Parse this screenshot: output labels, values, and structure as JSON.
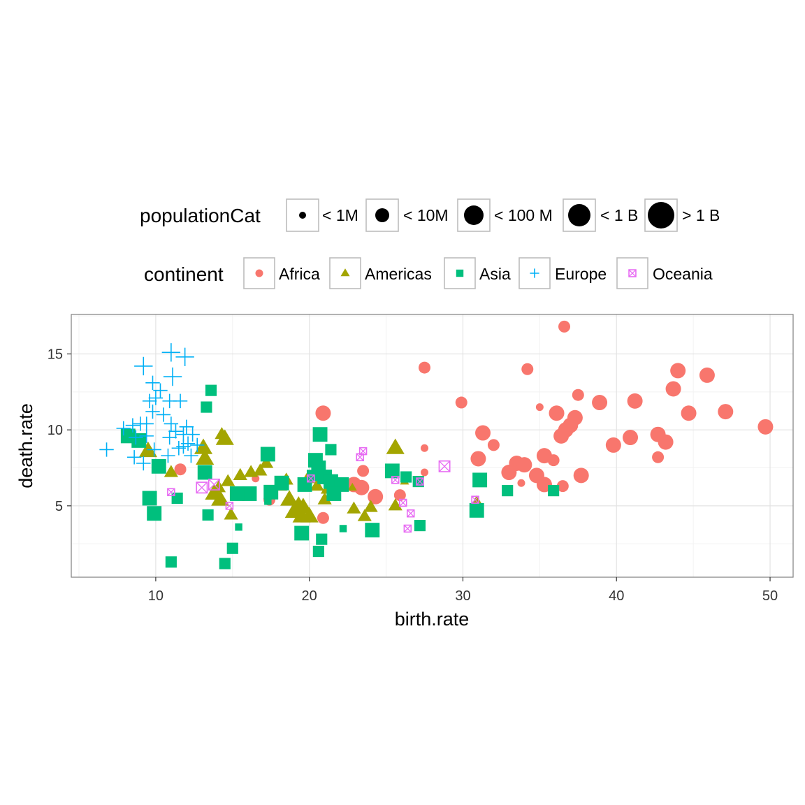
{
  "chart_data": {
    "type": "scatter",
    "xlabel": "birth.rate",
    "ylabel": "death.rate",
    "xlim": [
      4.5,
      51.5
    ],
    "ylim": [
      0.3,
      17.6
    ],
    "x_ticks": [
      10,
      20,
      30,
      40,
      50
    ],
    "y_ticks": [
      5,
      10,
      15
    ],
    "grid": true,
    "legend_placement": "top",
    "size_legend": {
      "title": "populationCat",
      "categories": [
        "< 1M",
        "< 10M",
        "< 100 M",
        "< 1 B",
        "> 1 B"
      ]
    },
    "shape_legend": {
      "title": "continent",
      "categories": [
        "Africa",
        "Americas",
        "Asia",
        "Europe",
        "Oceania"
      ]
    },
    "colors": {
      "Africa": "#F8766D",
      "Americas": "#A3A500",
      "Asia": "#00BF7D",
      "Europe": "#00B0F6",
      "Oceania": "#E76BF3"
    },
    "series": [
      {
        "name": "Africa",
        "points": [
          [
            36.6,
            16.8,
            2
          ],
          [
            27.5,
            14.1,
            2
          ],
          [
            34.2,
            14.0,
            2
          ],
          [
            44.0,
            13.9,
            3
          ],
          [
            45.9,
            13.6,
            3
          ],
          [
            43.7,
            12.7,
            3
          ],
          [
            37.5,
            12.3,
            2
          ],
          [
            41.2,
            11.9,
            3
          ],
          [
            38.9,
            11.8,
            3
          ],
          [
            29.9,
            11.8,
            2
          ],
          [
            20.9,
            11.1,
            3
          ],
          [
            35.0,
            11.5,
            1
          ],
          [
            36.1,
            11.1,
            3
          ],
          [
            44.7,
            11.1,
            3
          ],
          [
            47.1,
            11.2,
            3
          ],
          [
            37.3,
            10.8,
            3
          ],
          [
            37.0,
            10.3,
            3
          ],
          [
            36.7,
            10.0,
            3
          ],
          [
            49.7,
            10.2,
            3
          ],
          [
            31.3,
            9.8,
            3
          ],
          [
            36.4,
            9.6,
            3
          ],
          [
            40.9,
            9.5,
            3
          ],
          [
            42.7,
            9.7,
            3
          ],
          [
            43.2,
            9.2,
            3
          ],
          [
            39.8,
            9.0,
            3
          ],
          [
            32.0,
            9.0,
            2
          ],
          [
            27.5,
            8.8,
            1
          ],
          [
            35.3,
            8.3,
            3
          ],
          [
            35.9,
            8.0,
            2
          ],
          [
            31.0,
            8.1,
            3
          ],
          [
            42.7,
            8.2,
            2
          ],
          [
            33.5,
            7.8,
            3
          ],
          [
            34.0,
            7.7,
            3
          ],
          [
            33.0,
            7.2,
            3
          ],
          [
            34.8,
            7.0,
            3
          ],
          [
            37.7,
            7.0,
            3
          ],
          [
            33.8,
            6.5,
            1
          ],
          [
            35.3,
            6.4,
            3
          ],
          [
            36.5,
            6.3,
            2
          ],
          [
            11.6,
            7.4,
            2
          ],
          [
            16.5,
            6.8,
            1
          ],
          [
            23.5,
            7.3,
            2
          ],
          [
            22.9,
            6.4,
            3
          ],
          [
            23.4,
            6.2,
            3
          ],
          [
            24.3,
            5.6,
            3
          ],
          [
            25.9,
            5.7,
            2
          ],
          [
            17.4,
            5.4,
            2
          ],
          [
            20.9,
            4.2,
            2
          ],
          [
            27.5,
            7.2,
            1
          ]
        ]
      },
      {
        "name": "Americas",
        "points": [
          [
            14.5,
            9.4,
            3
          ],
          [
            13.1,
            8.8,
            3
          ],
          [
            13.2,
            8.1,
            3
          ],
          [
            9.5,
            8.6,
            3
          ],
          [
            25.6,
            8.8,
            3
          ],
          [
            14.3,
            9.7,
            2
          ],
          [
            15.5,
            7.0,
            2
          ],
          [
            16.2,
            7.2,
            2
          ],
          [
            17.2,
            7.8,
            2
          ],
          [
            16.8,
            7.3,
            2
          ],
          [
            18.5,
            6.7,
            2
          ],
          [
            18.1,
            6.3,
            2
          ],
          [
            19.9,
            6.8,
            2
          ],
          [
            20.5,
            6.3,
            2
          ],
          [
            21.2,
            6.1,
            2
          ],
          [
            14.1,
            6.2,
            2
          ],
          [
            14.7,
            6.6,
            2
          ],
          [
            13.8,
            5.8,
            3
          ],
          [
            14.2,
            5.4,
            3
          ],
          [
            18.7,
            5.4,
            3
          ],
          [
            19.3,
            5.0,
            3
          ],
          [
            19.6,
            4.9,
            3
          ],
          [
            19.0,
            4.6,
            3
          ],
          [
            20.0,
            4.3,
            3
          ],
          [
            19.5,
            4.3,
            3
          ],
          [
            21.0,
            5.4,
            2
          ],
          [
            22.9,
            4.8,
            2
          ],
          [
            24.0,
            4.9,
            2
          ],
          [
            23.6,
            4.3,
            2
          ],
          [
            25.6,
            5.0,
            2
          ],
          [
            30.9,
            5.2,
            2
          ],
          [
            14.9,
            4.4,
            2
          ],
          [
            11.0,
            7.2,
            2
          ],
          [
            22.8,
            6.2,
            1
          ],
          [
            26.2,
            6.6,
            1
          ]
        ]
      },
      {
        "name": "Asia",
        "points": [
          [
            13.6,
            12.6,
            2
          ],
          [
            13.3,
            11.5,
            2
          ],
          [
            8.2,
            9.6,
            3
          ],
          [
            8.9,
            9.3,
            3
          ],
          [
            10.2,
            7.6,
            3
          ],
          [
            17.3,
            8.4,
            3
          ],
          [
            20.7,
            9.7,
            3
          ],
          [
            21.4,
            8.7,
            2
          ],
          [
            20.4,
            8.0,
            3
          ],
          [
            20.6,
            7.5,
            3
          ],
          [
            20.2,
            7.0,
            2
          ],
          [
            19.7,
            6.4,
            3
          ],
          [
            18.2,
            6.5,
            3
          ],
          [
            16.1,
            5.8,
            3
          ],
          [
            15.3,
            5.8,
            3
          ],
          [
            13.2,
            7.2,
            3
          ],
          [
            17.5,
            5.9,
            3
          ],
          [
            21.0,
            6.9,
            3
          ],
          [
            21.4,
            6.6,
            3
          ],
          [
            22.1,
            6.4,
            3
          ],
          [
            21.6,
            5.8,
            3
          ],
          [
            25.4,
            7.3,
            3
          ],
          [
            26.3,
            6.9,
            2
          ],
          [
            27.1,
            6.6,
            2
          ],
          [
            31.1,
            6.7,
            3
          ],
          [
            32.9,
            6.0,
            2
          ],
          [
            35.9,
            6.0,
            2
          ],
          [
            9.6,
            5.5,
            3
          ],
          [
            9.9,
            4.5,
            3
          ],
          [
            11.4,
            5.5,
            2
          ],
          [
            13.4,
            4.4,
            2
          ],
          [
            15.4,
            3.6,
            1
          ],
          [
            19.5,
            3.2,
            3
          ],
          [
            20.8,
            2.8,
            2
          ],
          [
            20.6,
            2.0,
            2
          ],
          [
            22.2,
            3.5,
            1
          ],
          [
            24.1,
            3.4,
            3
          ],
          [
            27.2,
            3.7,
            2
          ],
          [
            15.0,
            2.2,
            2
          ],
          [
            14.5,
            1.2,
            2
          ],
          [
            11.0,
            1.3,
            2
          ],
          [
            30.9,
            4.7,
            3
          ],
          [
            17.3,
            5.3,
            1
          ]
        ]
      },
      {
        "name": "Europe",
        "points": [
          [
            11.0,
            15.1,
            3
          ],
          [
            11.9,
            14.8,
            3
          ],
          [
            9.2,
            14.2,
            3
          ],
          [
            11.1,
            13.5,
            3
          ],
          [
            9.8,
            13.1,
            2
          ],
          [
            10.3,
            12.6,
            2
          ],
          [
            10.0,
            12.1,
            2
          ],
          [
            9.6,
            11.9,
            2
          ],
          [
            10.9,
            11.9,
            2
          ],
          [
            11.6,
            11.9,
            2
          ],
          [
            9.8,
            11.2,
            2
          ],
          [
            10.5,
            11.0,
            2
          ],
          [
            9.0,
            10.4,
            2
          ],
          [
            9.4,
            10.4,
            2
          ],
          [
            7.9,
            10.1,
            2
          ],
          [
            8.5,
            10.3,
            2
          ],
          [
            11.0,
            10.4,
            2
          ],
          [
            12.0,
            10.2,
            2
          ],
          [
            11.3,
            9.9,
            2
          ],
          [
            11.8,
            9.7,
            2
          ],
          [
            10.9,
            9.5,
            2
          ],
          [
            12.4,
            9.7,
            2
          ],
          [
            9.4,
            9.6,
            2
          ],
          [
            8.7,
            9.5,
            2
          ],
          [
            6.8,
            8.7,
            2
          ],
          [
            12.1,
            9.1,
            2
          ],
          [
            12.7,
            9.0,
            2
          ],
          [
            11.5,
            8.8,
            2
          ],
          [
            9.9,
            8.7,
            2
          ],
          [
            10.8,
            8.3,
            2
          ],
          [
            8.6,
            8.2,
            2
          ],
          [
            9.2,
            7.8,
            2
          ],
          [
            12.3,
            8.3,
            2
          ],
          [
            11.8,
            8.9,
            2
          ]
        ]
      },
      {
        "name": "Oceania",
        "points": [
          [
            28.8,
            7.6,
            2
          ],
          [
            23.5,
            8.6,
            1
          ],
          [
            23.3,
            8.2,
            1
          ],
          [
            25.6,
            6.7,
            1
          ],
          [
            27.2,
            6.6,
            1
          ],
          [
            13.8,
            6.4,
            2
          ],
          [
            13.0,
            6.2,
            2
          ],
          [
            20.1,
            6.8,
            1
          ],
          [
            11.0,
            5.9,
            1
          ],
          [
            26.1,
            5.2,
            1
          ],
          [
            26.6,
            4.5,
            1
          ],
          [
            26.4,
            3.5,
            1
          ],
          [
            30.8,
            5.4,
            1
          ],
          [
            14.8,
            5.0,
            1
          ]
        ]
      }
    ]
  }
}
